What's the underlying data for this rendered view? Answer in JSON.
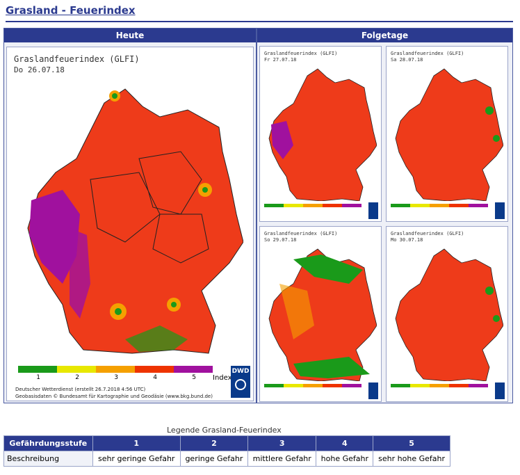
{
  "page_title": "Grasland - Feuerindex",
  "tabs": [
    {
      "label": "Heute"
    },
    {
      "label": "Folgetage"
    }
  ],
  "today_map": {
    "title": "Graslandfeuerindex (GLFI)",
    "date": "Do 26.07.18",
    "footer_line1": "Deutscher Wetterdienst (erstellt 26.7.2018 4:56 UTC)",
    "footer_line2": "Geobasisdaten © Bundesamt für Kartographie und Geodäsie (www.bkg.bund.de)",
    "legend_unit": "Index",
    "legend_numbers": [
      "1",
      "2",
      "3",
      "4",
      "5"
    ],
    "logo": "DWD"
  },
  "forecast_maps": [
    {
      "title": "Graslandfeuerindex (GLFI)",
      "date": "Fr 27.07.18",
      "variant": "purple-west"
    },
    {
      "title": "Graslandfeuerindex (GLFI)",
      "date": "Sa 28.07.18",
      "variant": "red"
    },
    {
      "title": "Graslandfeuerindex (GLFI)",
      "date": "So 29.07.18",
      "variant": "green"
    },
    {
      "title": "Graslandfeuerindex (GLFI)",
      "date": "Mo 30.07.18",
      "variant": "red"
    }
  ],
  "legend_colors": [
    "#1a9a1a",
    "#e8e800",
    "#f5a000",
    "#ee3300",
    "#a0119e"
  ],
  "legend_table": {
    "caption": "Legende Grasland-Feuerindex",
    "header_label": "Gefährdungsstufe",
    "levels": [
      "1",
      "2",
      "3",
      "4",
      "5"
    ],
    "row_label": "Beschreibung",
    "descriptions": [
      "sehr geringe Gefahr",
      "geringe Gefahr",
      "mittlere Gefahr",
      "hohe Gefahr",
      "sehr hohe Gefahr"
    ]
  }
}
